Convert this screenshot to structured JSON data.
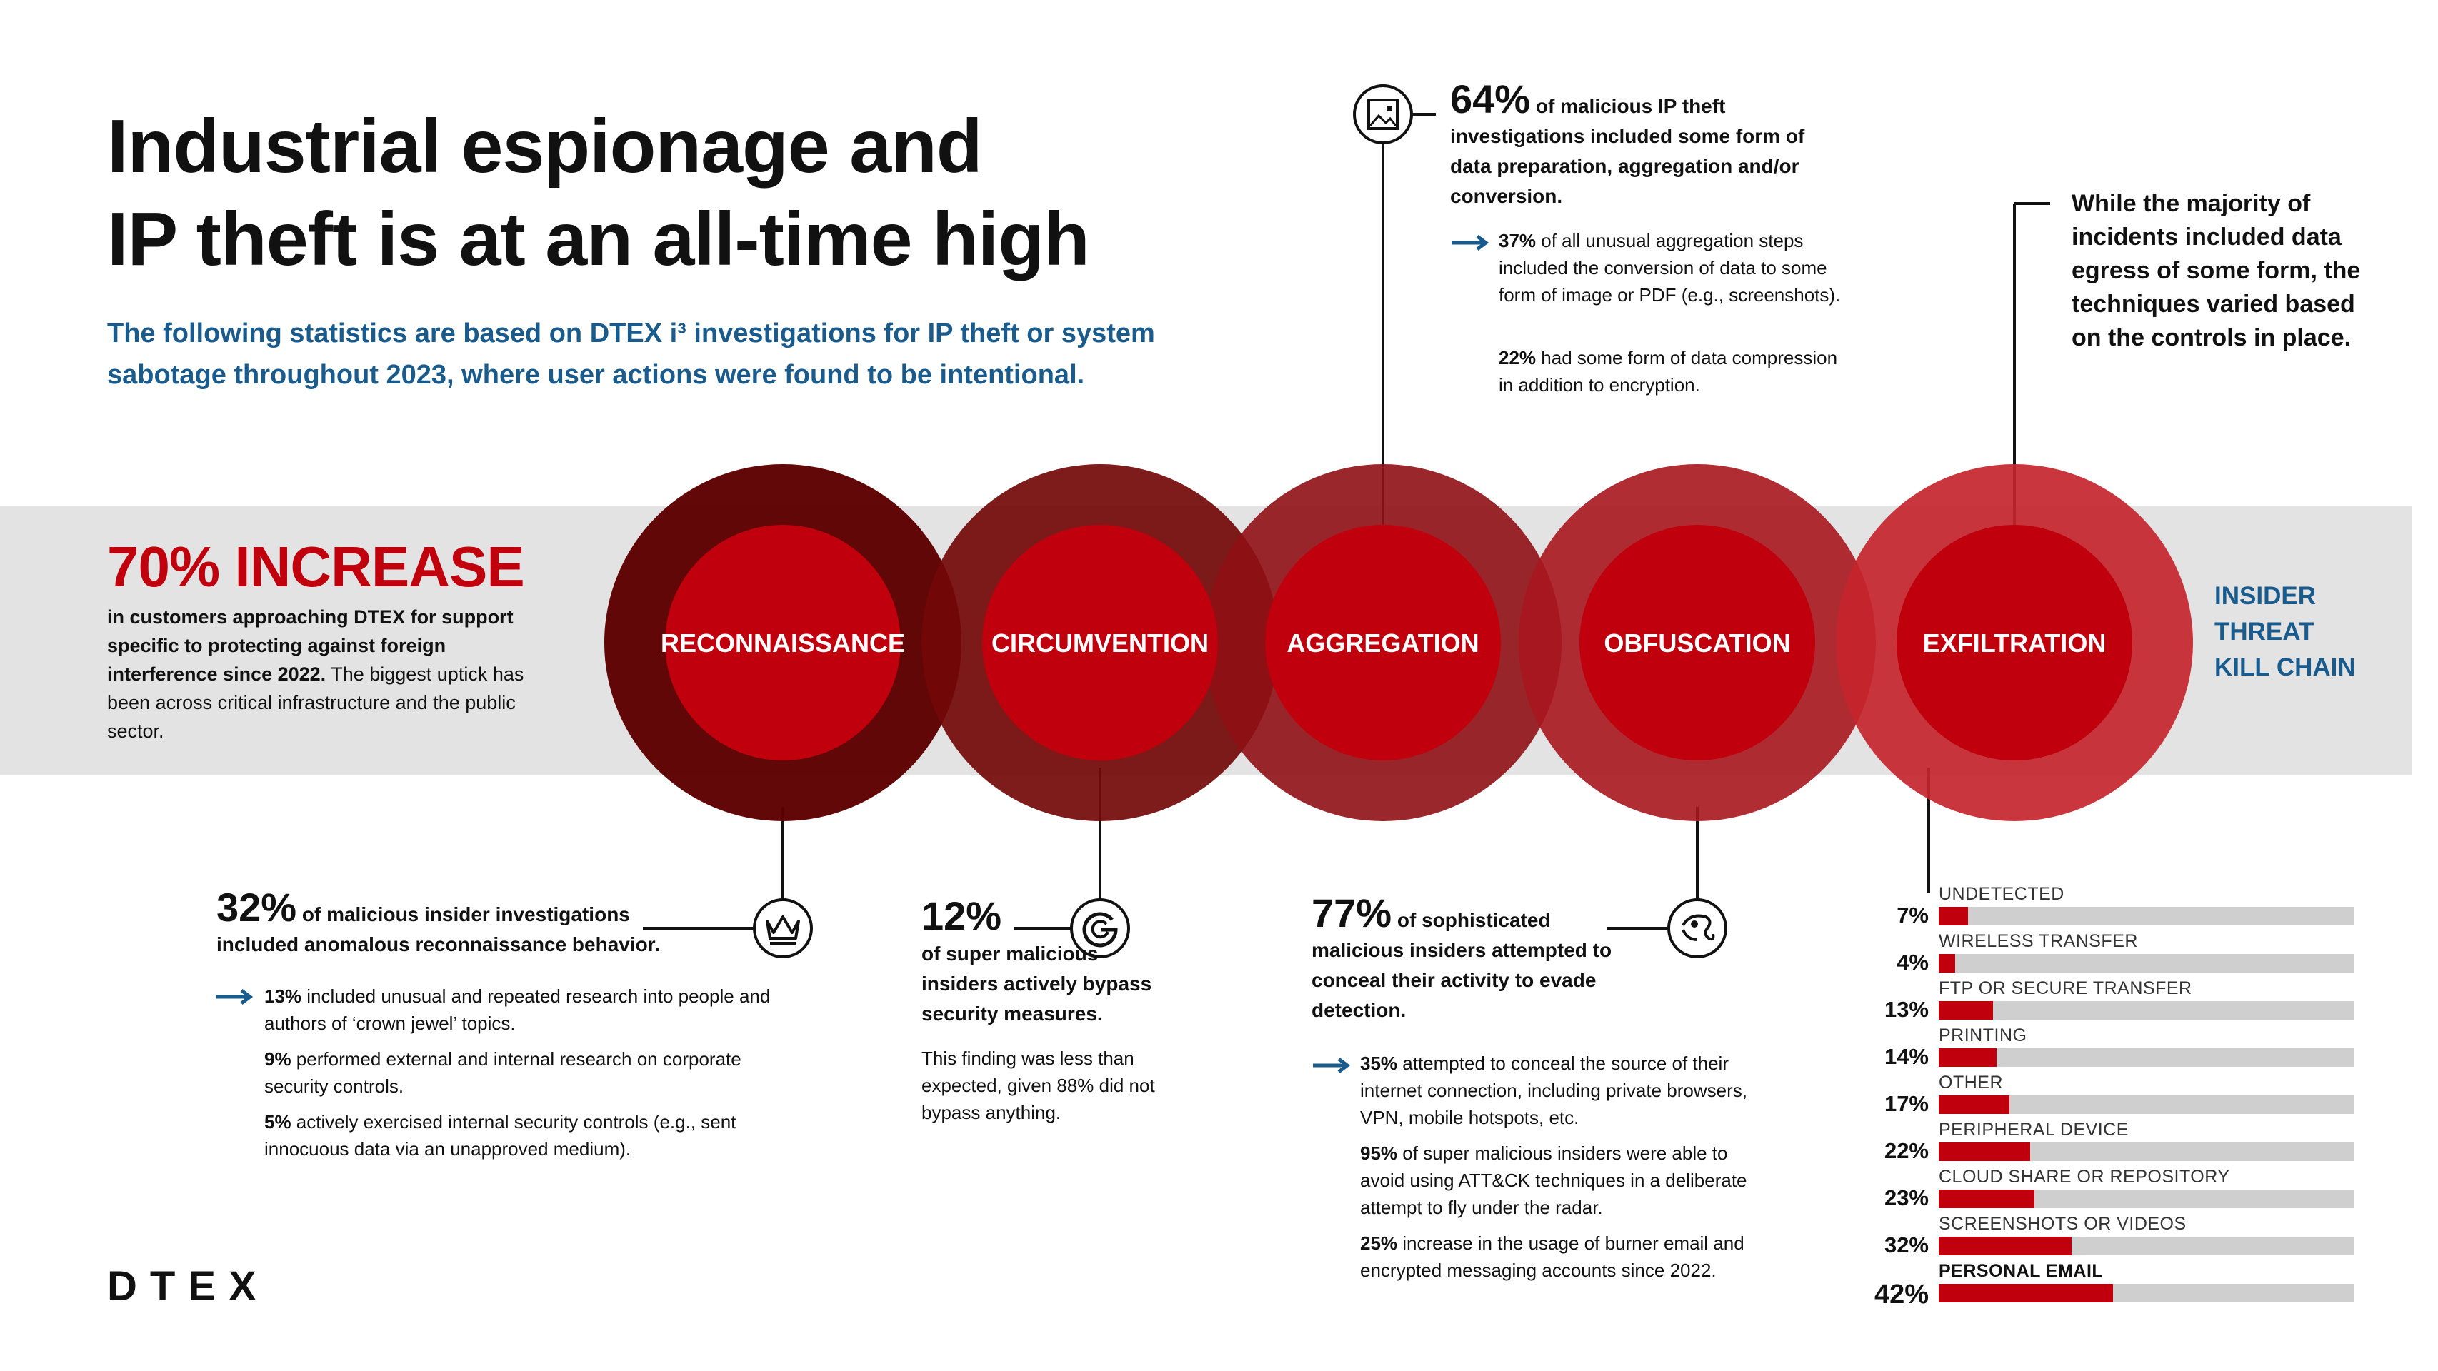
{
  "header": {
    "title_line1": "Industrial espionage and",
    "title_line2": "IP theft is at an all-time high",
    "subtitle": "The following statistics are based on DTEX i³ investigations for IP theft or system sabotage throughout 2023, where user actions were found to be intentional."
  },
  "increase": {
    "headline": "70% INCREASE",
    "bold_text": "in customers approaching DTEX for support specific to protecting against foreign interference since 2022.",
    "text": " The biggest uptick has been across critical infrastructure and the public sector."
  },
  "stages": [
    {
      "label": "RECONNAISSANCE",
      "color": "#5e0000",
      "icon": "crown-icon"
    },
    {
      "label": "CIRCUMVENTION",
      "color": "#730808",
      "icon": "g-circle-icon"
    },
    {
      "label": "AGGREGATION",
      "color": "#8e0f14",
      "icon": "image-icon"
    },
    {
      "label": "OBFUSCATION",
      "color": "#a8161e",
      "icon": "chameleon-icon"
    },
    {
      "label": "EXFILTRATION",
      "color": "#c5252c",
      "icon": ""
    }
  ],
  "inner_color": "#c0000c",
  "kill_chain": {
    "line1": "INSIDER",
    "line2": "THREAT",
    "line3": "KILL CHAIN"
  },
  "reconnaissance": {
    "big": "32%",
    "lead_a": "of malicious insider investigations",
    "lead_b": "included anomalous reconnaissance behavior.",
    "details": [
      {
        "bold": "13%",
        "text": " included unusual and repeated research into people and authors of ‘crown jewel’ topics."
      },
      {
        "bold": "9%",
        "text": " performed external and internal research on corporate security controls."
      },
      {
        "bold": "5%",
        "text": " actively exercised internal security controls (e.g., sent innocuous data via an unapproved medium)."
      }
    ]
  },
  "circumvention": {
    "big": "12%",
    "lead": "of super malicious insiders actively bypass security measures.",
    "note": "This finding was less than expected, given 88% did not bypass anything."
  },
  "aggregation": {
    "big": "64%",
    "lead_a": "of malicious IP theft",
    "lead_b": "investigations included some form of data preparation, aggregation and/or conversion.",
    "details": [
      {
        "bold": "37%",
        "text": " of all unusual aggregation steps included the conversion of data to some form of image or PDF (e.g., screenshots)."
      },
      {
        "bold": "22%",
        "text": " had some form of data compression in addition to encryption."
      }
    ]
  },
  "obfuscation": {
    "big": "77%",
    "lead_a": "of sophisticated",
    "lead_b": "malicious insiders attempted to conceal their activity to evade detection.",
    "details": [
      {
        "bold": "35%",
        "text": " attempted to conceal the source of their internet connection, including private browsers, VPN, mobile hotspots, etc."
      },
      {
        "bold": "95%",
        "text": " of super malicious insiders were able to avoid using ATT&CK techniques in a deliberate attempt to fly under the radar."
      },
      {
        "bold": "25%",
        "text": " increase in the usage of burner email and encrypted messaging accounts since 2022."
      }
    ]
  },
  "exfiltration": {
    "note": "While the majority of incidents included data egress of some form, the techniques varied based on the controls in place.",
    "bars": [
      {
        "label": "UNDETECTED",
        "pct": "7%",
        "value": 7
      },
      {
        "label": "WIRELESS TRANSFER",
        "pct": "4%",
        "value": 4
      },
      {
        "label": "FTP OR SECURE TRANSFER",
        "pct": "13%",
        "value": 13
      },
      {
        "label": "PRINTING",
        "pct": "14%",
        "value": 14
      },
      {
        "label": "OTHER",
        "pct": "17%",
        "value": 17
      },
      {
        "label": "PERIPHERAL DEVICE",
        "pct": "22%",
        "value": 22
      },
      {
        "label": "CLOUD SHARE OR REPOSITORY",
        "pct": "23%",
        "value": 23
      },
      {
        "label": "SCREENSHOTS OR VIDEOS",
        "pct": "32%",
        "value": 32
      },
      {
        "label": "PERSONAL EMAIL",
        "pct": "42%",
        "value": 42
      }
    ]
  },
  "logo": "DTEX"
}
